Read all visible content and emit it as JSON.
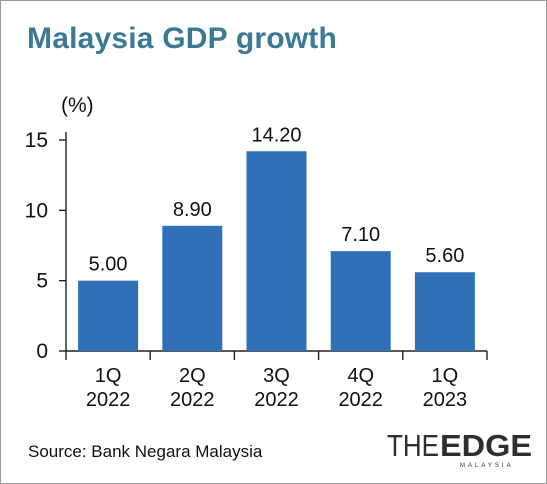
{
  "title": "Malaysia GDP growth",
  "source": "Source: Bank Negara Malaysia",
  "logo": {
    "text_the": "THE",
    "text_edge": "EDGE",
    "text_region": "MALAYSIA"
  },
  "colors": {
    "title": "#3b7a95",
    "bar": "#3070b8",
    "text": "#111111"
  },
  "chart_data": {
    "type": "bar",
    "title": "Malaysia GDP growth",
    "ylabel": "(%)",
    "xlabel": "",
    "categories": [
      [
        "1Q",
        "2022"
      ],
      [
        "2Q",
        "2022"
      ],
      [
        "3Q",
        "2022"
      ],
      [
        "4Q",
        "2022"
      ],
      [
        "1Q",
        "2023"
      ]
    ],
    "values": [
      5.0,
      8.9,
      14.2,
      7.1,
      5.6
    ],
    "value_labels": [
      "5.00",
      "8.90",
      "14.20",
      "7.10",
      "5.60"
    ],
    "ylim": [
      0,
      15
    ],
    "yticks": [
      0,
      5,
      10,
      15
    ],
    "grid": false,
    "legend": "none"
  }
}
